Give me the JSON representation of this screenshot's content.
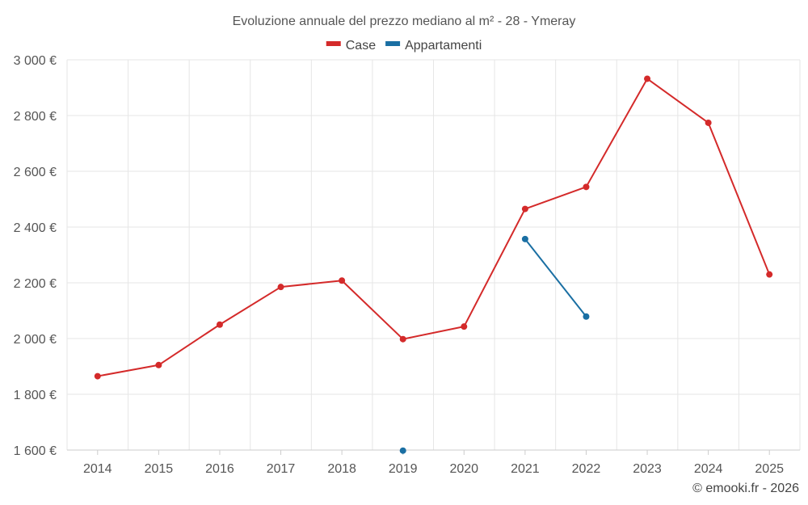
{
  "chart_data": {
    "type": "line",
    "title": "Evoluzione annuale del prezzo mediano al m² - 28 - Ymeray",
    "categories": [
      "2014",
      "2015",
      "2016",
      "2017",
      "2018",
      "2019",
      "2020",
      "2021",
      "2022",
      "2023",
      "2024",
      "2025"
    ],
    "series": [
      {
        "name": "Case",
        "color": "#d42a2a",
        "values": [
          1865,
          1905,
          2050,
          2185,
          2208,
          1998,
          2043,
          2465,
          2544,
          2932,
          2774,
          2230
        ]
      },
      {
        "name": "Appartamenti",
        "color": "#1a6fa3",
        "values": [
          null,
          null,
          null,
          null,
          null,
          1598,
          null,
          2357,
          2079,
          null,
          null,
          null
        ]
      }
    ],
    "ylim": [
      1600,
      3000
    ],
    "yticks": [
      1600,
      1800,
      2000,
      2200,
      2400,
      2600,
      2800,
      3000
    ],
    "ytick_labels": [
      "1 600 €",
      "1 800 €",
      "2 000 €",
      "2 200 €",
      "2 400 €",
      "2 600 €",
      "2 800 €",
      "3 000 €"
    ],
    "grid": true,
    "legend_position": "top-center"
  },
  "credit": "© emooki.fr - 2026"
}
